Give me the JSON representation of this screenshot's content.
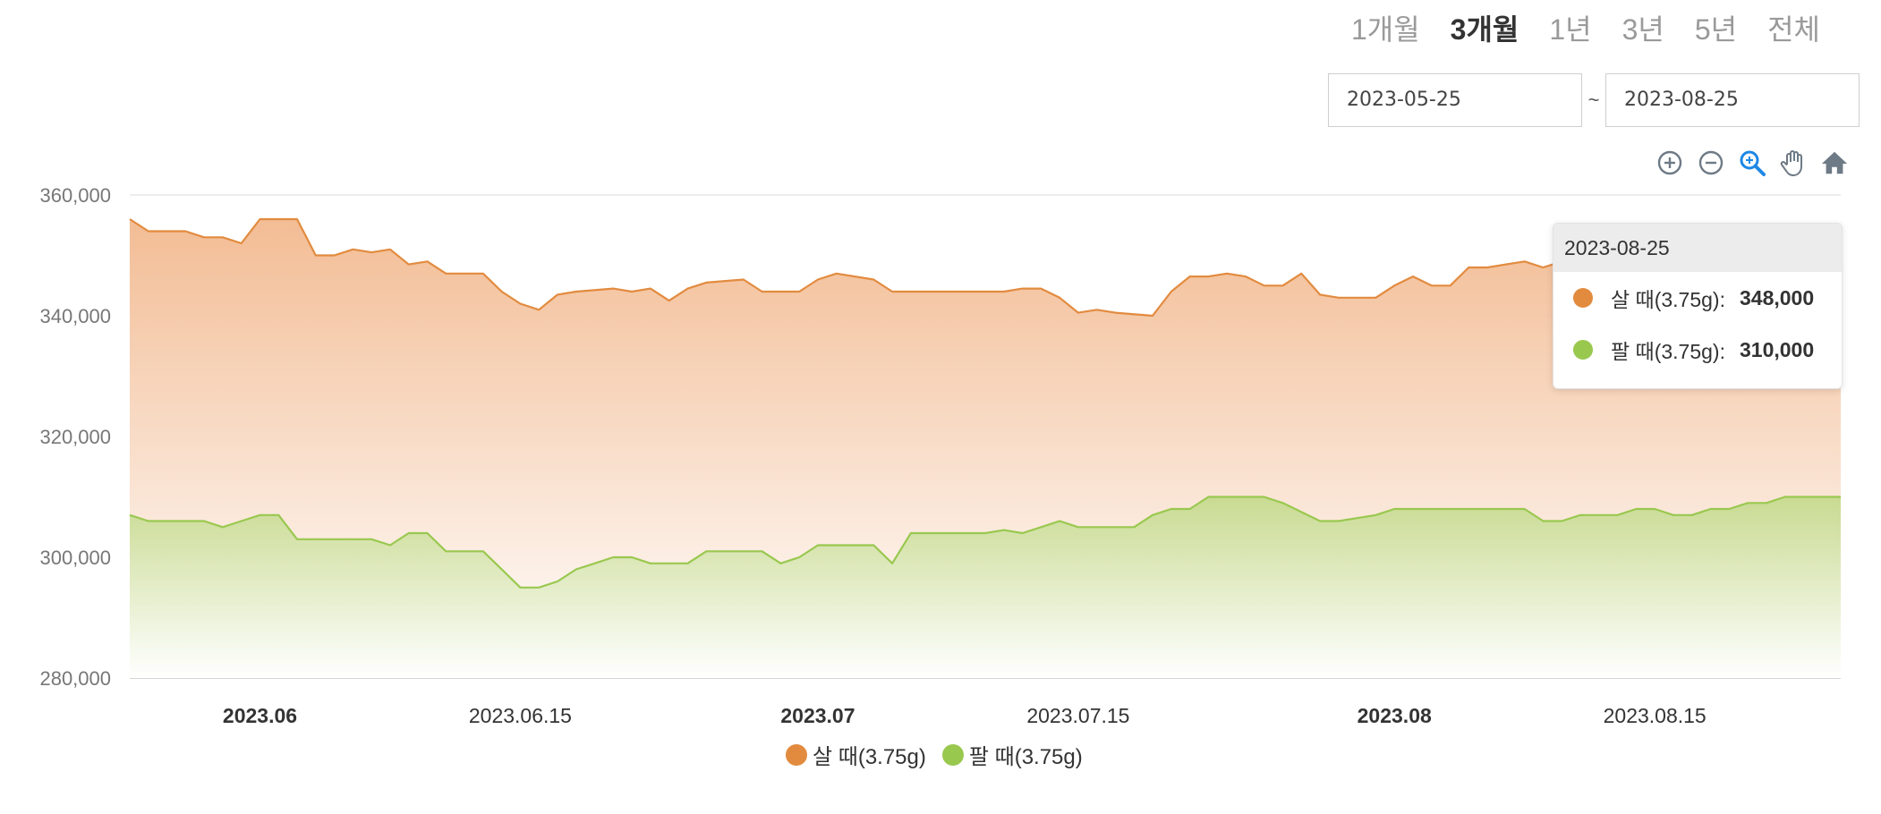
{
  "range_tabs": [
    {
      "label": "1개월",
      "active": false
    },
    {
      "label": "3개월",
      "active": true
    },
    {
      "label": "1년",
      "active": false
    },
    {
      "label": "3년",
      "active": false
    },
    {
      "label": "5년",
      "active": false
    },
    {
      "label": "전체",
      "active": false
    }
  ],
  "date_range": {
    "start": "2023-05-25",
    "separator": "~",
    "end": "2023-08-25"
  },
  "toolbar": {
    "icons": [
      "zoom-in-icon",
      "zoom-out-icon",
      "selection-zoom-icon",
      "pan-hand-icon",
      "reset-home-icon"
    ],
    "active_color": "#1e88e5",
    "color": "#6e7a86"
  },
  "tooltip": {
    "date": "2023-08-25",
    "rows": [
      {
        "label": "살 때(3.75g):",
        "value": "348,000",
        "color": "#e28b3f"
      },
      {
        "label": "팔 때(3.75g):",
        "value": "310,000",
        "color": "#99c84f"
      }
    ]
  },
  "chart_data": {
    "type": "area",
    "x_range": [
      "2023-05-25",
      "2023-08-25"
    ],
    "ylim": [
      280000,
      360000
    ],
    "y_ticks": [
      "360,000",
      "340,000",
      "320,000",
      "300,000",
      "280,000"
    ],
    "x_ticks": [
      {
        "label": "2023.06",
        "date": "2023-06-01",
        "bold": true
      },
      {
        "label": "2023.06.15",
        "date": "2023-06-15",
        "bold": false
      },
      {
        "label": "2023.07",
        "date": "2023-07-01",
        "bold": true
      },
      {
        "label": "2023.07.15",
        "date": "2023-07-15",
        "bold": false
      },
      {
        "label": "2023.08",
        "date": "2023-08-01",
        "bold": true
      },
      {
        "label": "2023.08.15",
        "date": "2023-08-15",
        "bold": false
      }
    ],
    "grid": true,
    "legend_position": "bottom-center",
    "series": [
      {
        "name": "살 때(3.75g)",
        "color": "#e28b3f",
        "points": [
          [
            "2023-05-25",
            356000
          ],
          [
            "2023-05-26",
            354000
          ],
          [
            "2023-05-28",
            354000
          ],
          [
            "2023-05-29",
            353000
          ],
          [
            "2023-05-30",
            353000
          ],
          [
            "2023-05-31",
            352000
          ],
          [
            "2023-06-01",
            356000
          ],
          [
            "2023-06-03",
            356000
          ],
          [
            "2023-06-04",
            350000
          ],
          [
            "2023-06-05",
            350000
          ],
          [
            "2023-06-06",
            351000
          ],
          [
            "2023-06-07",
            350500
          ],
          [
            "2023-06-08",
            351000
          ],
          [
            "2023-06-09",
            348500
          ],
          [
            "2023-06-10",
            349000
          ],
          [
            "2023-06-11",
            347000
          ],
          [
            "2023-06-13",
            347000
          ],
          [
            "2023-06-14",
            344000
          ],
          [
            "2023-06-15",
            342000
          ],
          [
            "2023-06-16",
            341000
          ],
          [
            "2023-06-17",
            343500
          ],
          [
            "2023-06-18",
            344000
          ],
          [
            "2023-06-20",
            344500
          ],
          [
            "2023-06-21",
            344000
          ],
          [
            "2023-06-22",
            344500
          ],
          [
            "2023-06-23",
            342500
          ],
          [
            "2023-06-24",
            344500
          ],
          [
            "2023-06-25",
            345500
          ],
          [
            "2023-06-27",
            346000
          ],
          [
            "2023-06-28",
            344000
          ],
          [
            "2023-06-30",
            344000
          ],
          [
            "2023-07-01",
            346000
          ],
          [
            "2023-07-02",
            347000
          ],
          [
            "2023-07-04",
            346000
          ],
          [
            "2023-07-05",
            344000
          ],
          [
            "2023-07-11",
            344000
          ],
          [
            "2023-07-12",
            344500
          ],
          [
            "2023-07-13",
            344500
          ],
          [
            "2023-07-14",
            343000
          ],
          [
            "2023-07-15",
            340500
          ],
          [
            "2023-07-16",
            341000
          ],
          [
            "2023-07-17",
            340500
          ],
          [
            "2023-07-19",
            340000
          ],
          [
            "2023-07-20",
            344000
          ],
          [
            "2023-07-21",
            346500
          ],
          [
            "2023-07-22",
            346500
          ],
          [
            "2023-07-23",
            347000
          ],
          [
            "2023-07-24",
            346500
          ],
          [
            "2023-07-25",
            345000
          ],
          [
            "2023-07-26",
            345000
          ],
          [
            "2023-07-27",
            347000
          ],
          [
            "2023-07-28",
            343500
          ],
          [
            "2023-07-29",
            343000
          ],
          [
            "2023-07-31",
            343000
          ],
          [
            "2023-08-01",
            345000
          ],
          [
            "2023-08-02",
            346500
          ],
          [
            "2023-08-03",
            345000
          ],
          [
            "2023-08-04",
            345000
          ],
          [
            "2023-08-05",
            348000
          ],
          [
            "2023-08-06",
            348000
          ],
          [
            "2023-08-07",
            348500
          ],
          [
            "2023-08-08",
            349000
          ],
          [
            "2023-08-09",
            348000
          ],
          [
            "2023-08-10",
            349000
          ],
          [
            "2023-08-11",
            348000
          ],
          [
            "2023-08-25",
            348000
          ]
        ]
      },
      {
        "name": "팔 때(3.75g)",
        "color": "#99c84f",
        "points": [
          [
            "2023-05-25",
            307000
          ],
          [
            "2023-05-26",
            306000
          ],
          [
            "2023-05-29",
            306000
          ],
          [
            "2023-05-30",
            305000
          ],
          [
            "2023-05-31",
            306000
          ],
          [
            "2023-06-01",
            307000
          ],
          [
            "2023-06-02",
            307000
          ],
          [
            "2023-06-03",
            303000
          ],
          [
            "2023-06-07",
            303000
          ],
          [
            "2023-06-08",
            302000
          ],
          [
            "2023-06-09",
            304000
          ],
          [
            "2023-06-10",
            304000
          ],
          [
            "2023-06-11",
            301000
          ],
          [
            "2023-06-13",
            301000
          ],
          [
            "2023-06-14",
            298000
          ],
          [
            "2023-06-15",
            295000
          ],
          [
            "2023-06-16",
            295000
          ],
          [
            "2023-06-17",
            296000
          ],
          [
            "2023-06-18",
            298000
          ],
          [
            "2023-06-19",
            299000
          ],
          [
            "2023-06-20",
            300000
          ],
          [
            "2023-06-21",
            300000
          ],
          [
            "2023-06-22",
            299000
          ],
          [
            "2023-06-24",
            299000
          ],
          [
            "2023-06-25",
            301000
          ],
          [
            "2023-06-28",
            301000
          ],
          [
            "2023-06-29",
            299000
          ],
          [
            "2023-06-30",
            300000
          ],
          [
            "2023-07-01",
            302000
          ],
          [
            "2023-07-04",
            302000
          ],
          [
            "2023-07-05",
            299000
          ],
          [
            "2023-07-06",
            304000
          ],
          [
            "2023-07-10",
            304000
          ],
          [
            "2023-07-11",
            304500
          ],
          [
            "2023-07-12",
            304000
          ],
          [
            "2023-07-13",
            305000
          ],
          [
            "2023-07-14",
            306000
          ],
          [
            "2023-07-15",
            305000
          ],
          [
            "2023-07-18",
            305000
          ],
          [
            "2023-07-19",
            307000
          ],
          [
            "2023-07-20",
            308000
          ],
          [
            "2023-07-21",
            308000
          ],
          [
            "2023-07-22",
            310000
          ],
          [
            "2023-07-25",
            310000
          ],
          [
            "2023-07-26",
            309000
          ],
          [
            "2023-07-27",
            307500
          ],
          [
            "2023-07-28",
            306000
          ],
          [
            "2023-07-29",
            306000
          ],
          [
            "2023-07-31",
            307000
          ],
          [
            "2023-08-01",
            308000
          ],
          [
            "2023-08-08",
            308000
          ],
          [
            "2023-08-09",
            306000
          ],
          [
            "2023-08-10",
            306000
          ],
          [
            "2023-08-11",
            307000
          ],
          [
            "2023-08-13",
            307000
          ],
          [
            "2023-08-14",
            308000
          ],
          [
            "2023-08-15",
            308000
          ],
          [
            "2023-08-16",
            307000
          ],
          [
            "2023-08-17",
            307000
          ],
          [
            "2023-08-18",
            308000
          ],
          [
            "2023-08-19",
            308000
          ],
          [
            "2023-08-20",
            309000
          ],
          [
            "2023-08-21",
            309000
          ],
          [
            "2023-08-22",
            310000
          ],
          [
            "2023-08-25",
            310000
          ]
        ]
      }
    ]
  }
}
